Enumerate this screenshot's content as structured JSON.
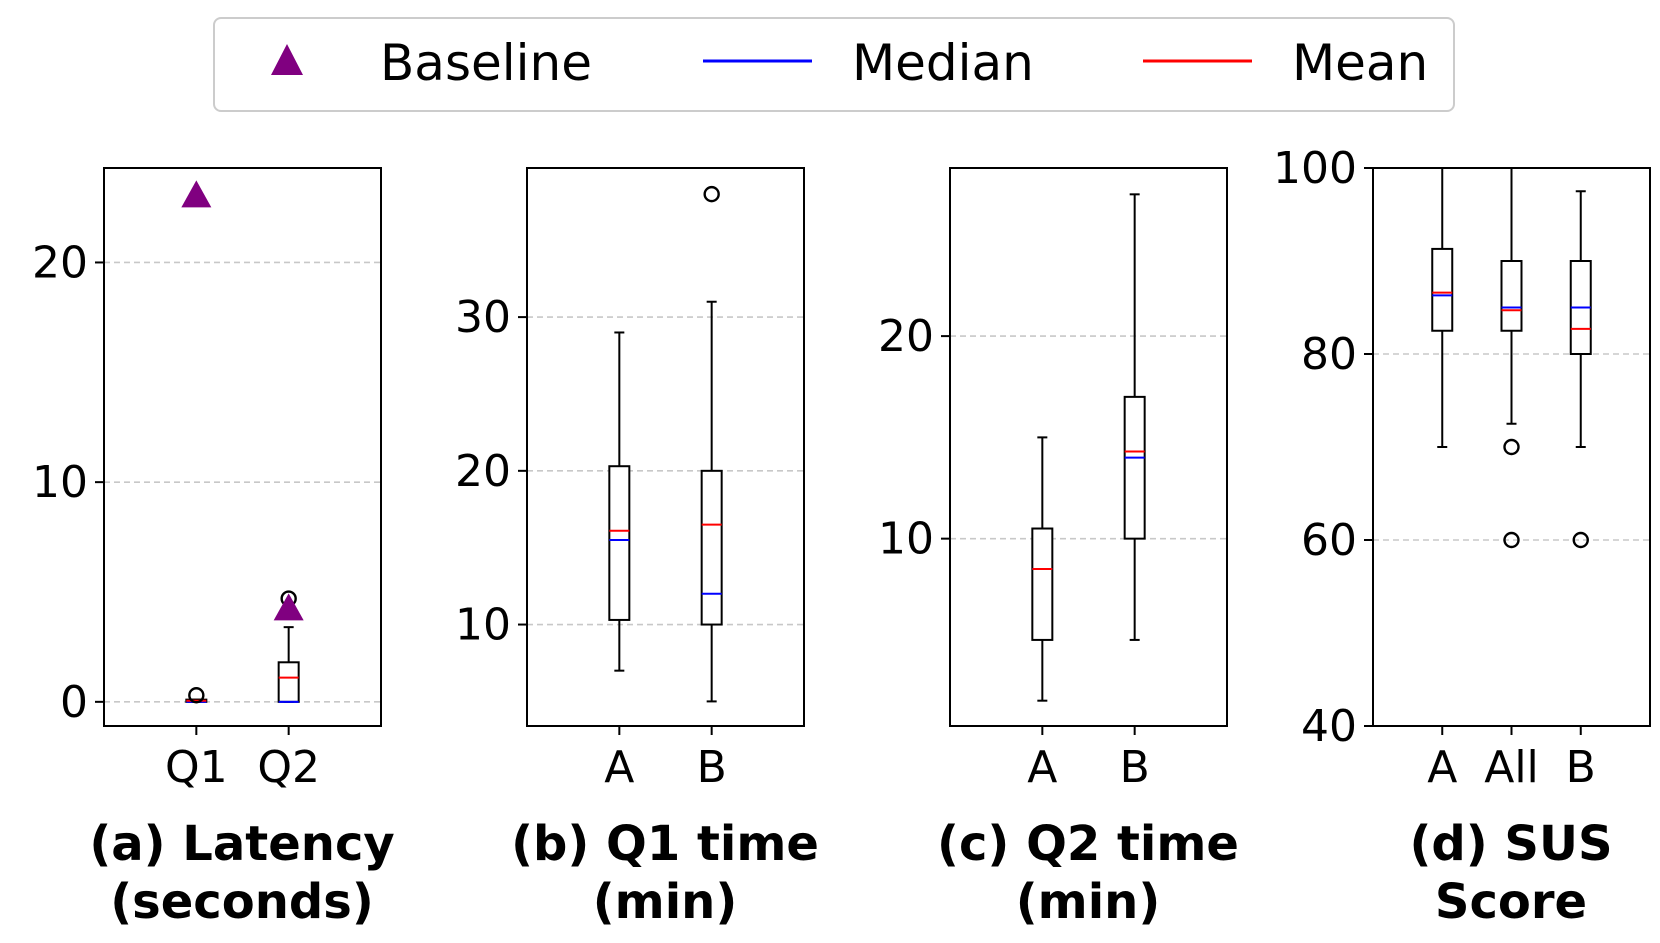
{
  "legend": {
    "baseline_label": "Baseline",
    "median_label": "Median",
    "mean_label": "Mean"
  },
  "colors": {
    "baseline": "#800080",
    "median": "#0000ff",
    "mean": "#ff0000",
    "grid": "#c8c8c8"
  },
  "chart_data": [
    {
      "type": "box",
      "id": "a",
      "caption_line1": "(a) Latency",
      "caption_line2": "(seconds)",
      "categories": [
        "Q1",
        "Q2"
      ],
      "ylim": [
        -1.1,
        24.3
      ],
      "yticks": [
        0,
        10,
        20
      ],
      "ytick_labels": [
        "0",
        "10",
        "20"
      ],
      "grid": true,
      "boxes": [
        {
          "category": "Q1",
          "whislo": 0.0,
          "q1": 0.0,
          "median": 0.0,
          "q3": 0.1,
          "whishi": 0.1,
          "mean": 0.05,
          "fliers": [
            0.3
          ]
        },
        {
          "category": "Q2",
          "whislo": 0.0,
          "q1": 0.0,
          "median": 0.0,
          "q3": 1.8,
          "whishi": 3.4,
          "mean": 1.1,
          "fliers": [
            4.7
          ]
        }
      ],
      "baseline": [
        {
          "category": "Q1",
          "value": 23.1
        },
        {
          "category": "Q2",
          "value": 4.3
        }
      ]
    },
    {
      "type": "box",
      "id": "b",
      "caption_line1": "(b) Q1 time",
      "caption_line2": "(min)",
      "categories": [
        "A",
        "B"
      ],
      "ylim": [
        3.4,
        39.7
      ],
      "yticks": [
        10,
        20,
        30
      ],
      "ytick_labels": [
        "10",
        "20",
        "30"
      ],
      "grid": true,
      "boxes": [
        {
          "category": "A",
          "whislo": 7,
          "q1": 10.3,
          "median": 15.5,
          "q3": 20.3,
          "whishi": 29,
          "mean": 16.1,
          "fliers": []
        },
        {
          "category": "B",
          "whislo": 5,
          "q1": 10,
          "median": 12,
          "q3": 20,
          "whishi": 31,
          "mean": 16.5,
          "fliers": [
            38
          ]
        }
      ]
    },
    {
      "type": "box",
      "id": "c",
      "caption_line1": "(c) Q2 time",
      "caption_line2": "(min)",
      "categories": [
        "A",
        "B"
      ],
      "ylim": [
        0.75,
        28.3
      ],
      "yticks": [
        10,
        20
      ],
      "ytick_labels": [
        "10",
        "20"
      ],
      "grid": true,
      "boxes": [
        {
          "category": "A",
          "whislo": 2,
          "q1": 5,
          "median": 8.5,
          "q3": 10.5,
          "whishi": 15,
          "mean": 8.5,
          "fliers": []
        },
        {
          "category": "B",
          "whislo": 5,
          "q1": 10,
          "median": 14,
          "q3": 17,
          "whishi": 27,
          "mean": 14.3,
          "fliers": []
        }
      ]
    },
    {
      "type": "box",
      "id": "d",
      "caption_line1": "(d) SUS",
      "caption_line2": "Score",
      "categories": [
        "A",
        "All",
        "B"
      ],
      "ylim": [
        40,
        100
      ],
      "yticks": [
        40,
        60,
        80,
        100
      ],
      "ytick_labels": [
        "40",
        "60",
        "80",
        "100"
      ],
      "grid": true,
      "boxes": [
        {
          "category": "A",
          "whislo": 70,
          "q1": 82.5,
          "median": 86.3,
          "q3": 91.3,
          "whishi": 100,
          "mean": 86.6,
          "fliers": []
        },
        {
          "category": "All",
          "whislo": 72.5,
          "q1": 82.5,
          "median": 85.0,
          "q3": 90.0,
          "whishi": 100,
          "mean": 84.7,
          "fliers": [
            70,
            60
          ]
        },
        {
          "category": "B",
          "whislo": 70,
          "q1": 80,
          "median": 85.0,
          "q3": 90.0,
          "whishi": 97.5,
          "mean": 82.7,
          "fliers": [
            60
          ]
        }
      ]
    }
  ]
}
